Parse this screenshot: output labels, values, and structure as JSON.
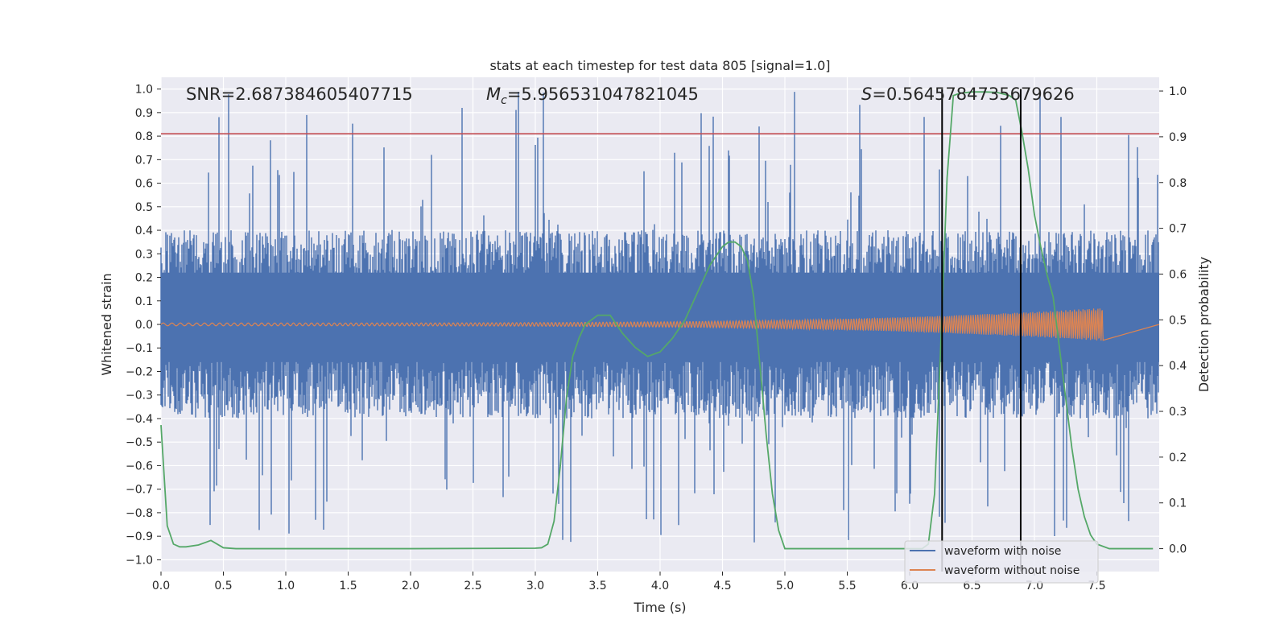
{
  "chart_data": {
    "type": "line",
    "title": "stats at each timestep for test data 805 [signal=1.0]",
    "xlabel": "Time (s)",
    "ylabel": "Whitened strain",
    "y2label": "Detection probability",
    "xlim": [
      0.0,
      8.0
    ],
    "ylim": [
      -1.05,
      1.05
    ],
    "y2lim": [
      -0.05,
      1.03
    ],
    "xticks": [
      "0.0",
      "0.5",
      "1.0",
      "1.5",
      "2.0",
      "2.5",
      "3.0",
      "3.5",
      "4.0",
      "4.5",
      "5.0",
      "5.5",
      "6.0",
      "6.5",
      "7.0",
      "7.5"
    ],
    "yticks": [
      "1.0",
      "0.9",
      "0.8",
      "0.7",
      "0.6",
      "0.5",
      "0.4",
      "0.3",
      "0.2",
      "0.1",
      "0.0",
      "−0.1",
      "−0.2",
      "−0.3",
      "−0.4",
      "−0.5",
      "−0.6",
      "−0.7",
      "−0.8",
      "−0.9",
      "−1.0"
    ],
    "y2ticks": [
      "1.0",
      "0.9",
      "0.8",
      "0.7",
      "0.6",
      "0.5",
      "0.4",
      "0.3",
      "0.2",
      "0.1",
      "0.0"
    ],
    "grid": true,
    "annotations": {
      "snr": "SNR=2.687384605407715",
      "mc_symbol": "M",
      "mc_sub": "c",
      "mc_value": "=5.956531047821045",
      "s_symbol": "S",
      "s_value": "=0.5645784735679626"
    },
    "threshold_line": {
      "y": 0.81,
      "color": "#c44e52"
    },
    "vertical_lines": {
      "x": [
        6.26,
        6.89
      ],
      "color": "#000000"
    },
    "series": [
      {
        "name": "waveform with noise",
        "color": "#4c72b0",
        "envelope": {
          "x_start": 0.0,
          "x_end": 8.0,
          "typical_max": 0.4,
          "typical_min": -0.4,
          "peak_max": 0.99,
          "peak_min": -0.93
        }
      },
      {
        "name": "waveform without noise",
        "color": "#dd8452",
        "chirp": {
          "x_start": 0.0,
          "x_end": 7.55,
          "amp_start": 0.006,
          "amp_end": 0.07
        }
      },
      {
        "name": "detection probability",
        "color": "#55a868",
        "axis": "right",
        "x": [
          0.0,
          0.05,
          0.1,
          0.15,
          0.2,
          0.3,
          0.4,
          0.5,
          0.6,
          0.7,
          1.0,
          2.0,
          3.0,
          3.05,
          3.1,
          3.15,
          3.2,
          3.25,
          3.3,
          3.35,
          3.4,
          3.5,
          3.6,
          3.65,
          3.7,
          3.8,
          3.9,
          3.95,
          4.0,
          4.1,
          4.2,
          4.3,
          4.4,
          4.5,
          4.55,
          4.6,
          4.65,
          4.7,
          4.75,
          4.8,
          4.85,
          4.9,
          4.95,
          5.0,
          5.5,
          6.0,
          6.1,
          6.15,
          6.2,
          6.25,
          6.3,
          6.35,
          6.4,
          6.5,
          6.6,
          6.7,
          6.8,
          6.85,
          6.9,
          6.95,
          7.0,
          7.05,
          7.1,
          7.15,
          7.2,
          7.25,
          7.3,
          7.35,
          7.4,
          7.45,
          7.5,
          7.6,
          7.7,
          7.8,
          7.95
        ],
        "y": [
          0.27,
          0.05,
          0.01,
          0.004,
          0.004,
          0.008,
          0.018,
          0.002,
          0.0,
          0.0,
          0.0,
          0.0,
          0.001,
          0.002,
          0.01,
          0.06,
          0.18,
          0.33,
          0.42,
          0.46,
          0.49,
          0.51,
          0.51,
          0.49,
          0.47,
          0.44,
          0.42,
          0.425,
          0.43,
          0.46,
          0.5,
          0.56,
          0.62,
          0.66,
          0.67,
          0.67,
          0.66,
          0.63,
          0.55,
          0.4,
          0.25,
          0.12,
          0.04,
          0.0,
          0.0,
          0.0,
          0.0,
          0.01,
          0.12,
          0.45,
          0.81,
          0.99,
          0.995,
          0.998,
          0.998,
          0.997,
          0.99,
          0.98,
          0.91,
          0.83,
          0.73,
          0.66,
          0.6,
          0.55,
          0.44,
          0.33,
          0.22,
          0.13,
          0.07,
          0.03,
          0.01,
          0.0,
          0.0,
          0.0,
          0.0
        ]
      }
    ],
    "legend": {
      "position": "lower-right",
      "entries": [
        {
          "label": "waveform with noise",
          "color": "#4c72b0"
        },
        {
          "label": "waveform without noise",
          "color": "#dd8452"
        }
      ]
    }
  }
}
